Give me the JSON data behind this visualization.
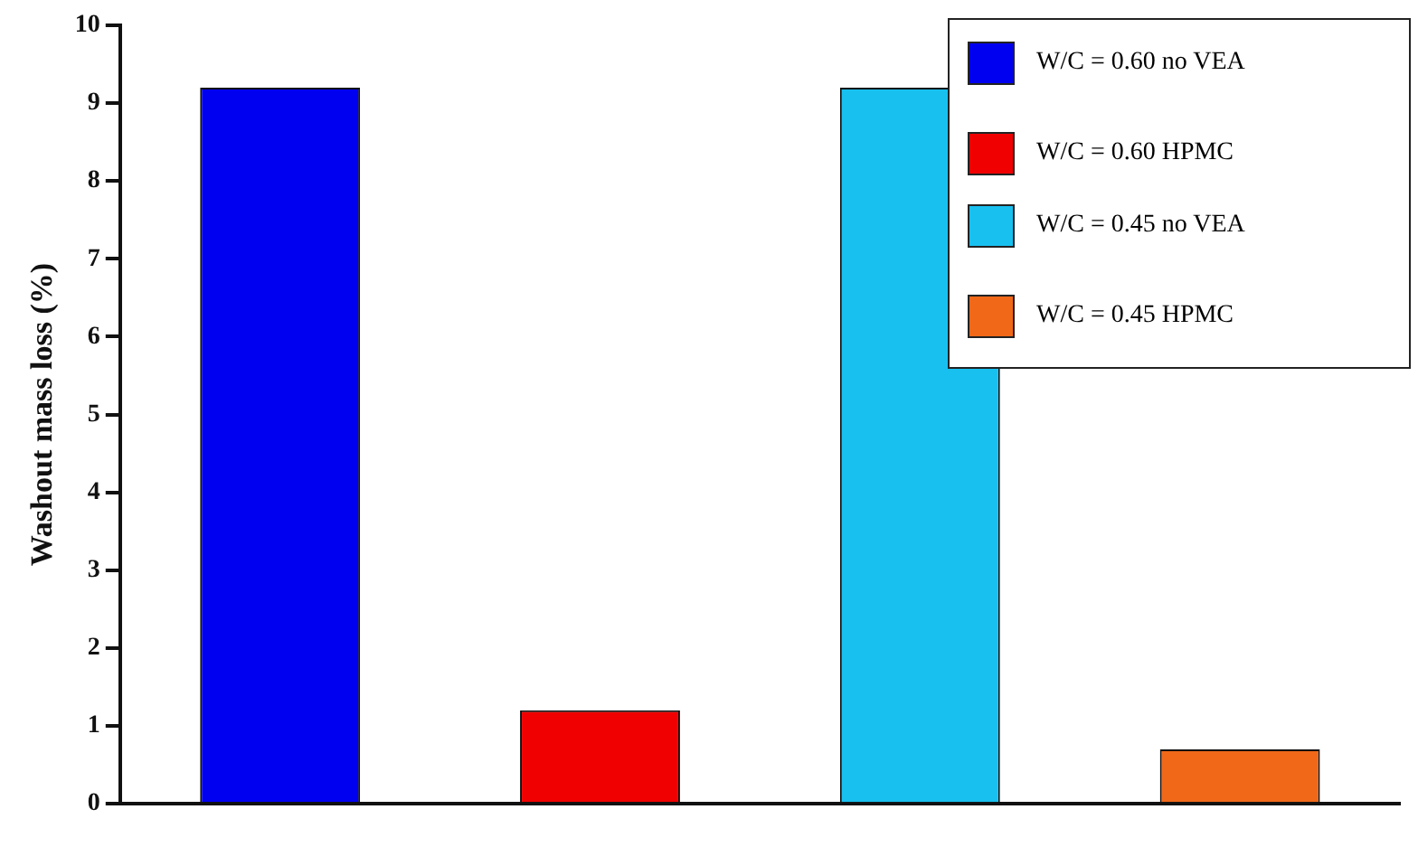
{
  "chart_data": {
    "type": "bar",
    "ylabel": "Washout mass loss (%)",
    "categories": [
      null,
      null,
      null,
      null
    ],
    "series": [
      {
        "name": "W/C = 0.60 no VEA",
        "color": "#0000f0",
        "values": [
          9.2,
          null,
          null,
          null
        ]
      },
      {
        "name": "W/C = 0.60 HPMC",
        "color": "#f00000",
        "values": [
          null,
          1.2,
          null,
          null
        ]
      },
      {
        "name": "W/C = 0.45 no VEA",
        "color": "#18c0f0",
        "values": [
          null,
          null,
          9.2,
          null
        ]
      },
      {
        "name": "W/C = 0.45 HPMC",
        "color": "#f06818",
        "values": [
          null,
          null,
          null,
          0.7
        ]
      }
    ],
    "ylim": [
      0,
      10
    ],
    "yticks": [
      0,
      1,
      2,
      3,
      4,
      5,
      6,
      7,
      8,
      9,
      10
    ],
    "grid": false,
    "legend": "top right"
  }
}
